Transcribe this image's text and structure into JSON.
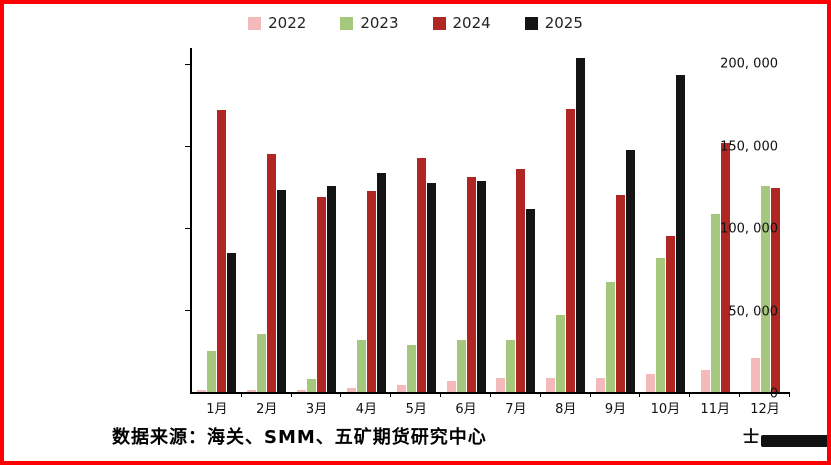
{
  "source_text": "数据来源：海关、SMM、五矿期货研究中心",
  "watermark": {
    "text": "士"
  },
  "chart_data": {
    "type": "bar",
    "title": "",
    "xlabel": "",
    "ylabel": "",
    "categories": [
      "1月",
      "2月",
      "3月",
      "4月",
      "5月",
      "6月",
      "7月",
      "8月",
      "9月",
      "10月",
      "11月",
      "12月"
    ],
    "series": [
      {
        "name": "2022",
        "color": "#f4b9ba",
        "values": [
          1000,
          1000,
          1500,
          2500,
          4000,
          6500,
          8500,
          8500,
          8500,
          11000,
          13500,
          20500
        ]
      },
      {
        "name": "2023",
        "color": "#a6c87e",
        "values": [
          25000,
          35500,
          8000,
          31500,
          29000,
          31500,
          31500,
          47000,
          67000,
          82000,
          108500,
          126000
        ]
      },
      {
        "name": "2024",
        "color": "#b02622",
        "values": [
          172000,
          145500,
          119000,
          122500,
          143000,
          131000,
          136000,
          173000,
          120000,
          95000,
          152000,
          124500
        ]
      },
      {
        "name": "2025",
        "color": "#141414",
        "values": [
          85000,
          123500,
          125500,
          134000,
          127500,
          129000,
          112000,
          204000,
          148000,
          193500,
          null,
          null
        ]
      }
    ],
    "ylim": [
      0,
      210000
    ],
    "yticks": [
      0,
      50000,
      100000,
      150000,
      200000
    ],
    "ytick_labels": [
      "0",
      "50, 000",
      "100, 000",
      "150, 000",
      "200, 000"
    ],
    "grid": false,
    "legend_position": "top"
  }
}
